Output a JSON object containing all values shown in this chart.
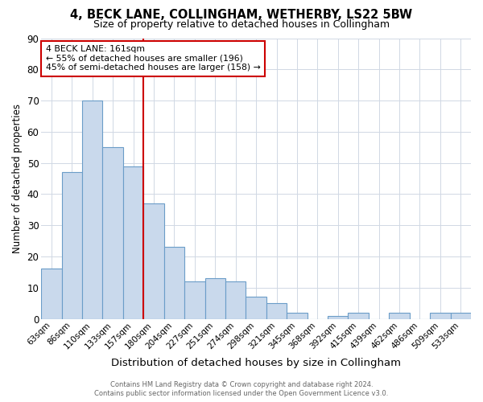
{
  "title": "4, BECK LANE, COLLINGHAM, WETHERBY, LS22 5BW",
  "subtitle": "Size of property relative to detached houses in Collingham",
  "xlabel": "Distribution of detached houses by size in Collingham",
  "ylabel": "Number of detached properties",
  "footer1": "Contains HM Land Registry data © Crown copyright and database right 2024.",
  "footer2": "Contains public sector information licensed under the Open Government Licence v3.0.",
  "categories": [
    "63sqm",
    "86sqm",
    "110sqm",
    "133sqm",
    "157sqm",
    "180sqm",
    "204sqm",
    "227sqm",
    "251sqm",
    "274sqm",
    "298sqm",
    "321sqm",
    "345sqm",
    "368sqm",
    "392sqm",
    "415sqm",
    "439sqm",
    "462sqm",
    "486sqm",
    "509sqm",
    "533sqm"
  ],
  "values": [
    16,
    47,
    70,
    55,
    49,
    37,
    23,
    12,
    13,
    12,
    7,
    5,
    2,
    0,
    1,
    2,
    0,
    2,
    0,
    2,
    2
  ],
  "bar_color": "#c9d9ec",
  "bar_edge_color": "#6b9dc8",
  "vline_color": "#cc0000",
  "vline_x": 4.5,
  "annotation_title": "4 BECK LANE: 161sqm",
  "annotation_line2": "← 55% of detached houses are smaller (196)",
  "annotation_line3": "45% of semi-detached houses are larger (158) →",
  "annotation_box_color": "#ffffff",
  "annotation_box_edge_color": "#cc0000",
  "ylim": [
    0,
    90
  ],
  "yticks": [
    0,
    10,
    20,
    30,
    40,
    50,
    60,
    70,
    80,
    90
  ],
  "background_color": "#ffffff",
  "grid_color": "#d0d8e4"
}
